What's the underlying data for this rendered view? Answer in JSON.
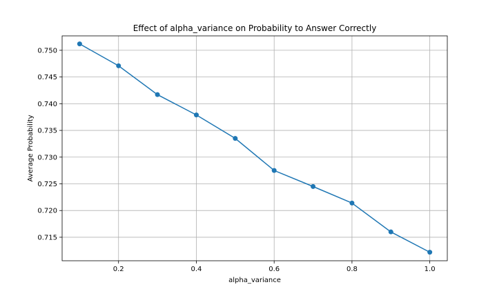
{
  "chart_data": {
    "type": "line",
    "title": "Effect of alpha_variance on Probability to Answer Correctly",
    "xlabel": "alpha_variance",
    "ylabel": "Average Probability",
    "xlim": [
      0.055,
      1.045
    ],
    "ylim": [
      0.7106,
      0.7527
    ],
    "xticks": [
      0.2,
      0.4,
      0.6,
      0.8,
      1.0
    ],
    "xtick_labels": [
      "0.2",
      "0.4",
      "0.6",
      "0.8",
      "1.0"
    ],
    "yticks": [
      0.715,
      0.72,
      0.725,
      0.73,
      0.735,
      0.74,
      0.745,
      0.75
    ],
    "ytick_labels": [
      "0.715",
      "0.720",
      "0.725",
      "0.730",
      "0.735",
      "0.740",
      "0.745",
      "0.750"
    ],
    "grid": true,
    "series": [
      {
        "x": [
          0.1,
          0.2,
          0.3,
          0.4,
          0.5,
          0.6,
          0.7,
          0.8,
          0.9,
          1.0
        ],
        "y": [
          0.7512,
          0.7471,
          0.7417,
          0.7379,
          0.7335,
          0.7275,
          0.7245,
          0.7214,
          0.716,
          0.7122
        ],
        "color": "#1f77b4",
        "marker": "circle"
      }
    ]
  }
}
